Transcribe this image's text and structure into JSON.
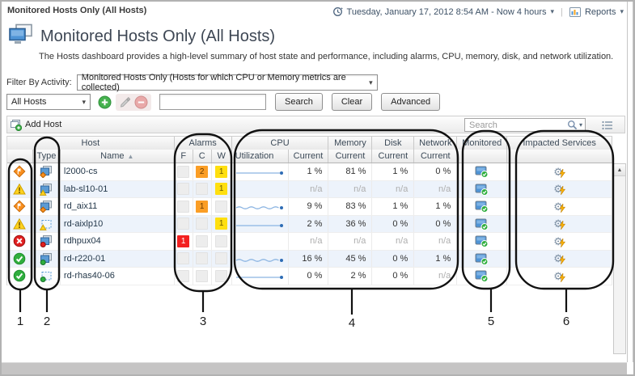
{
  "header": {
    "breadcrumb": "Monitored Hosts Only (All Hosts)",
    "time_range": "Tuesday, January 17, 2012 8:54 AM - Now 4 hours",
    "reports": "Reports",
    "title": "Monitored Hosts Only (All Hosts)",
    "description": "The Hosts dashboard provides a high-level summary of host state and performance, including alarms, CPU, memory, disk, and network utilization."
  },
  "filter_bar": {
    "label": "Filter By Activity:",
    "value": "Monitored Hosts Only (Hosts for which CPU or Memory metrics are collected)"
  },
  "search_bar": {
    "scope": "All Hosts",
    "input_value": "",
    "search": "Search",
    "clear": "Clear",
    "advanced": "Advanced"
  },
  "grid_toolbar": {
    "add_host": "Add Host",
    "search_placeholder": "Search"
  },
  "grid": {
    "group_headers": {
      "host": "Host",
      "alarms": "Alarms",
      "cpu": "CPU",
      "memory": "Memory",
      "disk": "Disk",
      "network": "Network",
      "monitored": "Monitored",
      "impacted": "Impacted Services"
    },
    "column_headers": {
      "type": "Type",
      "name": "Name",
      "fatal": "F",
      "critical": "C",
      "warning": "W",
      "utilization": "Utilization",
      "current": "Current"
    },
    "rows": [
      {
        "severity": "critical",
        "host_type": "physical",
        "name": "l2000-cs",
        "fatal": "",
        "critical": "2",
        "warning": "1",
        "sparkline": "flat",
        "cpu": "1 %",
        "memory": "81 %",
        "disk": "1 %",
        "network": "0 %",
        "monitored": true,
        "impacted_services": true
      },
      {
        "severity": "warning",
        "host_type": "physical",
        "name": "lab-sl10-01",
        "fatal": "",
        "critical": "",
        "warning": "1",
        "sparkline": "none",
        "cpu": "n/a",
        "memory": "n/a",
        "disk": "n/a",
        "network": "n/a",
        "monitored": true,
        "impacted_services": true
      },
      {
        "severity": "critical",
        "host_type": "physical",
        "name": "rd_aix11",
        "fatal": "",
        "critical": "1",
        "warning": "",
        "sparkline": "wavy",
        "cpu": "9 %",
        "memory": "83 %",
        "disk": "1 %",
        "network": "1 %",
        "monitored": true,
        "impacted_services": true
      },
      {
        "severity": "warning",
        "host_type": "virtual",
        "name": "rd-aixlp10",
        "fatal": "",
        "critical": "",
        "warning": "1",
        "sparkline": "flat",
        "cpu": "2 %",
        "memory": "36 %",
        "disk": "0 %",
        "network": "0 %",
        "monitored": true,
        "impacted_services": true
      },
      {
        "severity": "fatal",
        "host_type": "physical",
        "name": "rdhpux04",
        "fatal": "1",
        "critical": "",
        "warning": "",
        "sparkline": "none",
        "cpu": "n/a",
        "memory": "n/a",
        "disk": "n/a",
        "network": "n/a",
        "monitored": true,
        "impacted_services": true
      },
      {
        "severity": "normal",
        "host_type": "physical",
        "name": "rd-r220-01",
        "fatal": "",
        "critical": "",
        "warning": "",
        "sparkline": "wavy",
        "cpu": "16 %",
        "memory": "45 %",
        "disk": "0 %",
        "network": "1 %",
        "monitored": true,
        "impacted_services": true
      },
      {
        "severity": "normal",
        "host_type": "virtual",
        "name": "rd-rhas40-06",
        "fatal": "",
        "critical": "",
        "warning": "",
        "sparkline": "flat",
        "cpu": "0 %",
        "memory": "2 %",
        "disk": "0 %",
        "network": "n/a",
        "monitored": true,
        "impacted_services": true
      }
    ]
  },
  "callouts": [
    "1",
    "2",
    "3",
    "4",
    "5",
    "6"
  ],
  "icons": {
    "caret_down": "▾",
    "sort_asc": "▲",
    "scrollbar_up": "▲",
    "divider": "|"
  },
  "colors": {
    "alarm_fatal": "#f32121",
    "alarm_critical": "#fb9e25",
    "alarm_warning": "#ffdf0f",
    "status_normal_green": "#2fae3e",
    "host_icon_blue": "#5b9bd5",
    "row_alternate": "#edf3fb",
    "sparkline": "#8ab4e2",
    "header_text": "#3c4a58",
    "annotation_stroke": "#111111"
  }
}
